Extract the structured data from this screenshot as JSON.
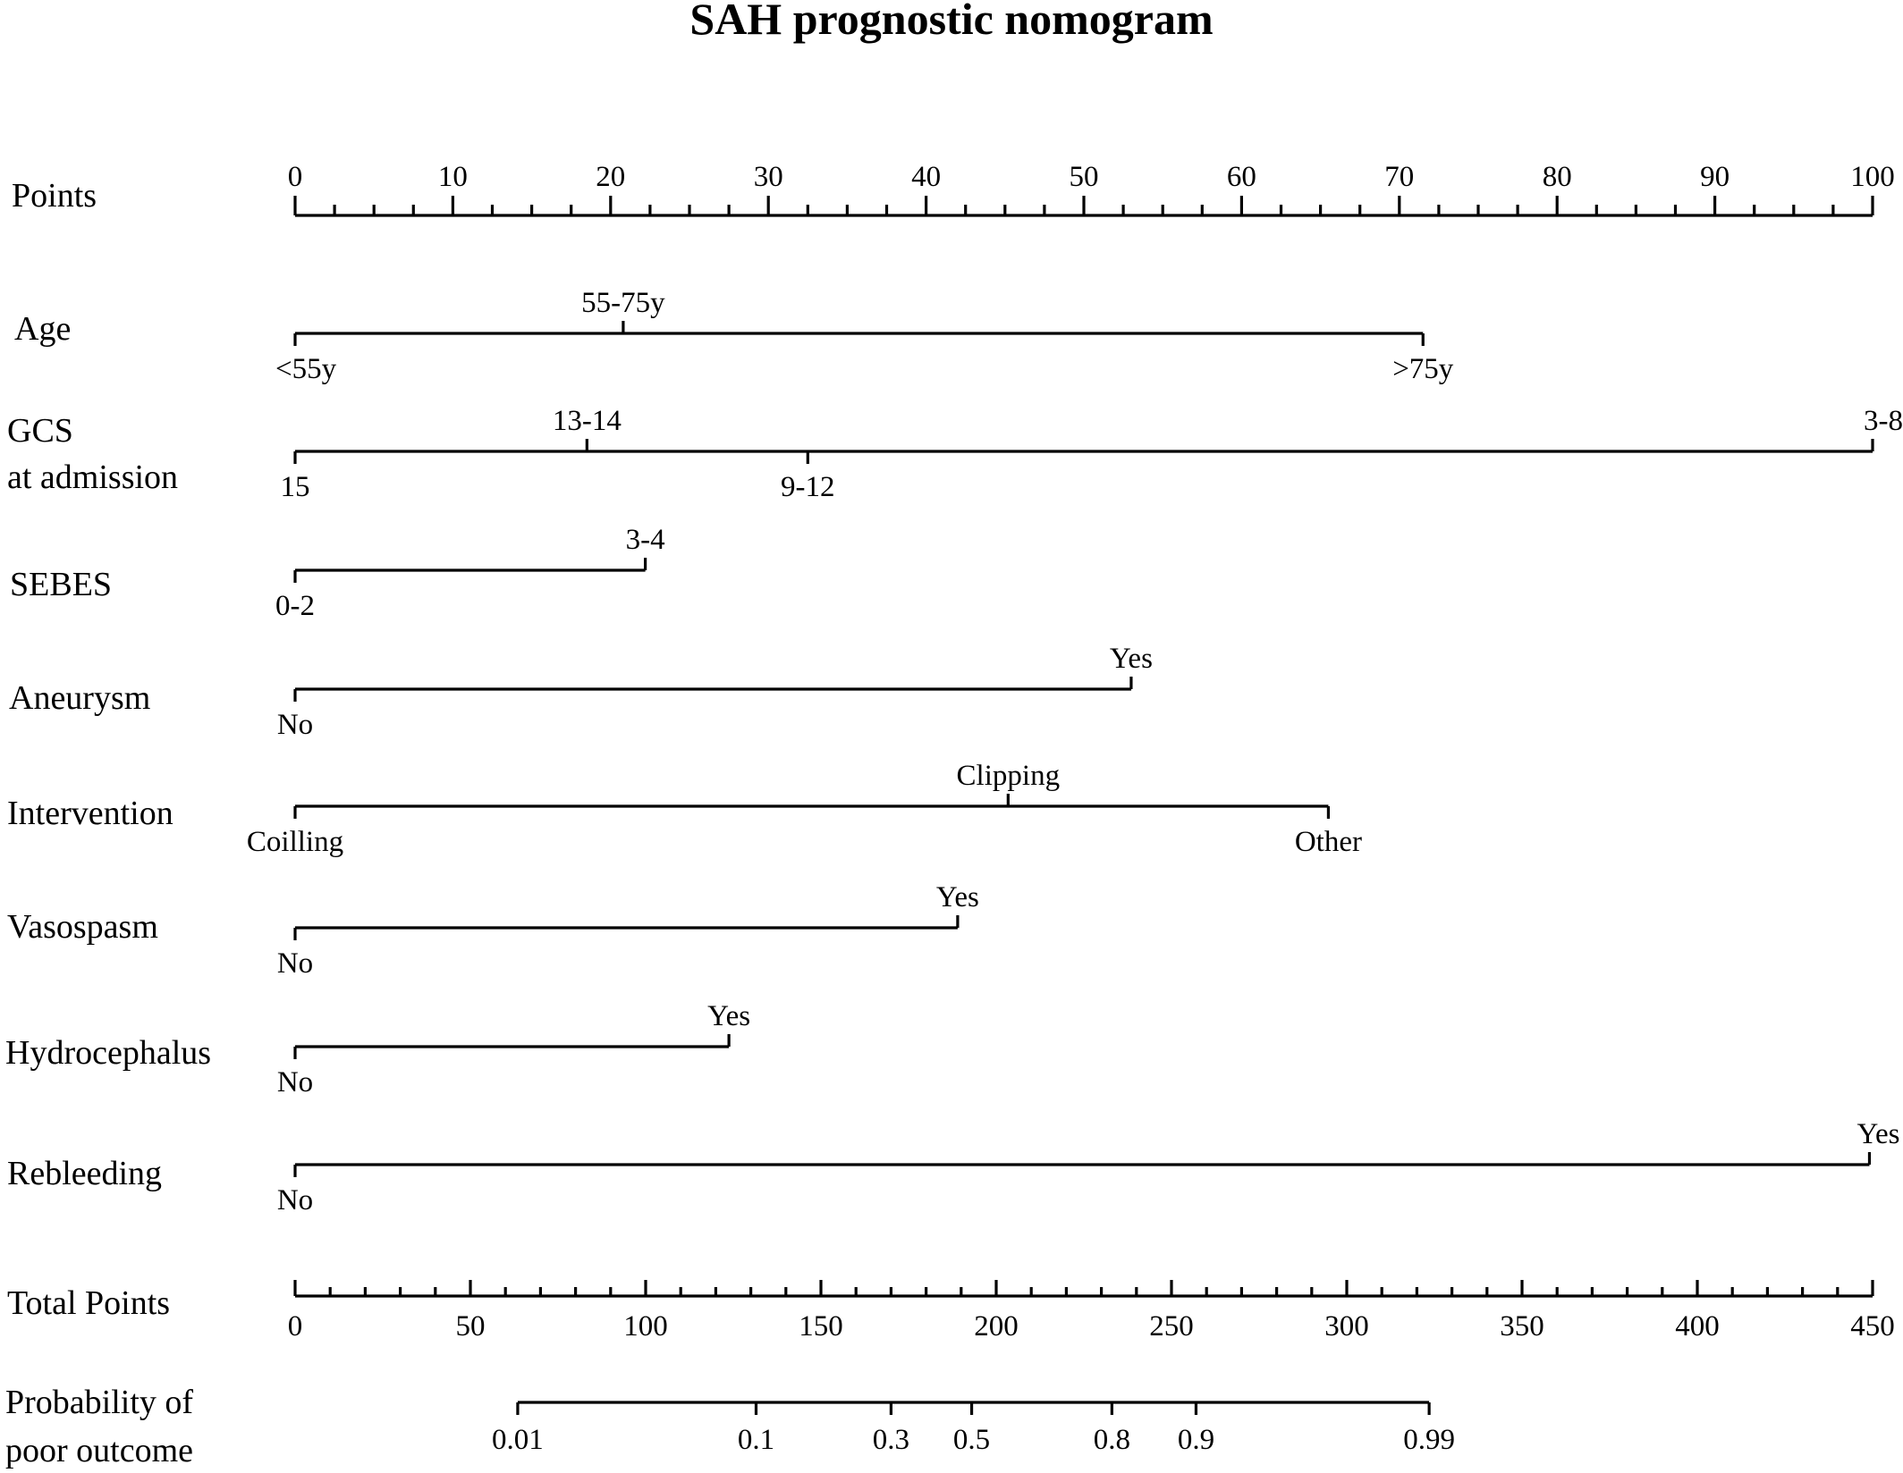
{
  "chart_data": {
    "type": "nomogram",
    "title": "SAH prognostic nomogram",
    "points_scale": {
      "label": "Points",
      "range": [
        0,
        100
      ],
      "major_ticks": [
        "0",
        "10",
        "20",
        "30",
        "40",
        "50",
        "60",
        "70",
        "80",
        "90",
        "100"
      ]
    },
    "predictors": [
      {
        "name": "Age",
        "levels": [
          {
            "label": "<55y",
            "points": 0
          },
          {
            "label": "55-75y",
            "points": 20.8
          },
          {
            "label": ">75y",
            "points": 71.5
          }
        ]
      },
      {
        "name": "GCS at admission",
        "name_lines": [
          "GCS",
          "at admission"
        ],
        "levels": [
          {
            "label": "15",
            "points": 0
          },
          {
            "label": "13-14",
            "points": 18.5
          },
          {
            "label": "9-12",
            "points": 32.5
          },
          {
            "label": "3-8",
            "points": 100
          }
        ]
      },
      {
        "name": "SEBES",
        "levels": [
          {
            "label": "0-2",
            "points": 0
          },
          {
            "label": "3-4",
            "points": 22.2
          }
        ]
      },
      {
        "name": "Aneurysm",
        "levels": [
          {
            "label": "No",
            "points": 0
          },
          {
            "label": "Yes",
            "points": 53
          }
        ]
      },
      {
        "name": "Intervention",
        "levels": [
          {
            "label": "Coilling",
            "points": 0
          },
          {
            "label": "Clipping",
            "points": 45.2
          },
          {
            "label": "Other",
            "points": 65.5
          }
        ]
      },
      {
        "name": "Vasospasm",
        "levels": [
          {
            "label": "No",
            "points": 0
          },
          {
            "label": "Yes",
            "points": 42
          }
        ]
      },
      {
        "name": "Hydrocephalus",
        "levels": [
          {
            "label": "No",
            "points": 0
          },
          {
            "label": "Yes",
            "points": 27.5
          }
        ]
      },
      {
        "name": "Rebleeding",
        "levels": [
          {
            "label": "No",
            "points": 0
          },
          {
            "label": "Yes",
            "points": 99.8
          }
        ]
      }
    ],
    "total_points_scale": {
      "label": "Total Points",
      "range": [
        0,
        450
      ],
      "major_ticks": [
        "0",
        "50",
        "100",
        "150",
        "200",
        "250",
        "300",
        "350",
        "400",
        "450"
      ]
    },
    "probability_scale": {
      "label": "Probability of poor outcome",
      "label_lines": [
        "Probability of",
        "poor outcome"
      ],
      "ticks": [
        {
          "label": "0.01",
          "total_points": 63.5
        },
        {
          "label": "0.1",
          "total_points": 131.5
        },
        {
          "label": "0.3",
          "total_points": 170
        },
        {
          "label": "0.5",
          "total_points": 193
        },
        {
          "label": "0.8",
          "total_points": 233
        },
        {
          "label": "0.9",
          "total_points": 257
        },
        {
          "label": "0.99",
          "total_points": 323.5
        }
      ]
    }
  }
}
